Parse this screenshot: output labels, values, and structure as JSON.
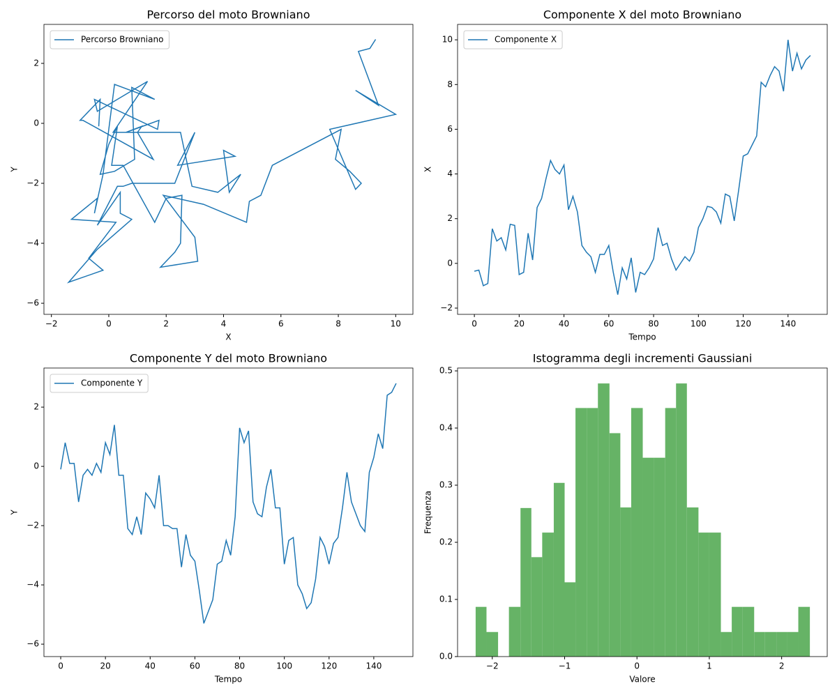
{
  "chart_data": [
    {
      "type": "line",
      "title": "Percorso del moto Browniano",
      "xlabel": "X",
      "ylabel": "Y",
      "x": [
        -0.35,
        -0.3,
        -1.0,
        -0.9,
        1.55,
        1.0,
        1.15,
        0.6,
        1.75,
        1.7,
        -0.5,
        -0.4,
        1.35,
        0.15,
        2.5,
        2.9,
        3.8,
        4.6,
        4.2,
        4.0,
        4.4,
        2.4,
        3.0,
        2.3,
        0.8,
        0.5,
        0.3,
        -0.4,
        0.4,
        0.4,
        0.8,
        -0.4,
        -1.4,
        -0.2,
        -0.7,
        0.25,
        -1.3,
        -0.4,
        -0.5,
        -0.2,
        0.2,
        1.6,
        0.8,
        0.9,
        0.2,
        -0.3,
        0.0,
        0.3,
        0.1,
        0.5,
        1.6,
        2.0,
        2.55,
        2.5,
        2.3,
        1.8,
        3.1,
        3.0,
        1.9,
        3.3,
        4.8,
        4.9,
        5.3,
        5.7,
        8.1,
        7.9,
        8.4,
        8.8,
        8.6,
        7.7,
        10.0,
        8.6,
        9.4,
        8.7,
        9.1,
        9.3
      ],
      "series": [
        {
          "name": "Percorso Browniano",
          "color": "#1f77b4",
          "values": [
            -0.1,
            0.8,
            0.1,
            0.1,
            -1.2,
            -0.3,
            -0.1,
            -0.3,
            0.1,
            -0.2,
            0.8,
            0.4,
            1.4,
            -0.3,
            -0.3,
            -2.1,
            -2.3,
            -1.7,
            -2.3,
            -0.9,
            -1.1,
            -1.4,
            -0.3,
            -2.0,
            -2.0,
            -2.1,
            -2.1,
            -3.4,
            -2.3,
            -3.0,
            -3.2,
            -4.2,
            -5.3,
            -4.9,
            -4.5,
            -3.3,
            -3.2,
            -2.5,
            -3.0,
            -1.7,
            1.3,
            0.8,
            1.2,
            -1.2,
            -1.6,
            -1.7,
            -0.7,
            -0.1,
            -1.4,
            -1.4,
            -3.3,
            -2.5,
            -2.4,
            -4.0,
            -4.3,
            -4.8,
            -4.6,
            -3.8,
            -2.4,
            -2.7,
            -3.3,
            -2.6,
            -2.4,
            -1.4,
            -0.2,
            -1.2,
            -1.6,
            -2.0,
            -2.2,
            -0.2,
            0.3,
            1.1,
            0.6,
            2.4,
            2.5,
            2.8
          ]
        }
      ],
      "xlim": [
        -2.26,
        10.6
      ],
      "ylim": [
        -6.37,
        3.3
      ],
      "xticks": [
        {
          "value": -2,
          "label": "−2"
        },
        0,
        2,
        4,
        6,
        8,
        10
      ],
      "yticks": [
        {
          "value": -6,
          "label": "−6"
        },
        {
          "value": -4,
          "label": "−4"
        },
        {
          "value": -2,
          "label": "−2"
        },
        0,
        2
      ],
      "legend": "upper left"
    },
    {
      "type": "line",
      "title": "Componente X del moto Browniano",
      "xlabel": "Tempo",
      "ylabel": "X",
      "x": [
        0,
        2,
        4,
        6,
        8,
        10,
        12,
        14,
        16,
        18,
        20,
        22,
        24,
        26,
        28,
        30,
        32,
        34,
        36,
        38,
        40,
        42,
        44,
        46,
        48,
        50,
        52,
        54,
        56,
        58,
        60,
        62,
        64,
        66,
        68,
        70,
        72,
        74,
        76,
        78,
        80,
        82,
        84,
        86,
        88,
        90,
        92,
        94,
        96,
        98,
        100,
        102,
        104,
        106,
        108,
        110,
        112,
        114,
        116,
        118,
        120,
        122,
        124,
        126,
        128,
        130,
        132,
        134,
        136,
        138,
        140,
        142,
        144,
        146,
        148,
        150
      ],
      "series": [
        {
          "name": "Componente X",
          "color": "#1f77b4",
          "values": [
            -0.35,
            -0.3,
            -1.0,
            -0.9,
            1.55,
            1.0,
            1.15,
            0.6,
            1.75,
            1.7,
            -0.5,
            -0.4,
            1.35,
            0.15,
            2.5,
            2.9,
            3.8,
            4.6,
            4.2,
            4.0,
            4.4,
            2.4,
            3.0,
            2.3,
            0.8,
            0.5,
            0.3,
            -0.4,
            0.4,
            0.4,
            0.8,
            -0.4,
            -1.4,
            -0.2,
            -0.7,
            0.25,
            -1.3,
            -0.4,
            -0.5,
            -0.2,
            0.2,
            1.6,
            0.8,
            0.9,
            0.2,
            -0.3,
            0.0,
            0.3,
            0.1,
            0.5,
            1.6,
            2.0,
            2.55,
            2.5,
            2.3,
            1.8,
            3.1,
            3.0,
            1.9,
            3.3,
            4.8,
            4.9,
            5.3,
            5.7,
            8.1,
            7.9,
            8.4,
            8.8,
            8.6,
            7.7,
            10.0,
            8.6,
            9.4,
            8.7,
            9.1,
            9.3
          ]
        }
      ],
      "xlim": [
        -7.5,
        157.5
      ],
      "ylim": [
        -2.28,
        10.69
      ],
      "xticks": [
        0,
        20,
        40,
        60,
        80,
        100,
        120,
        140
      ],
      "yticks": [
        {
          "value": -2,
          "label": "−2"
        },
        0,
        2,
        4,
        6,
        8,
        10
      ],
      "legend": "upper left"
    },
    {
      "type": "line",
      "title": "Componente Y del moto Browniano",
      "xlabel": "Tempo",
      "ylabel": "Y",
      "x": [
        0,
        2,
        4,
        6,
        8,
        10,
        12,
        14,
        16,
        18,
        20,
        22,
        24,
        26,
        28,
        30,
        32,
        34,
        36,
        38,
        40,
        42,
        44,
        46,
        48,
        50,
        52,
        54,
        56,
        58,
        60,
        62,
        64,
        66,
        68,
        70,
        72,
        74,
        76,
        78,
        80,
        82,
        84,
        86,
        88,
        90,
        92,
        94,
        96,
        98,
        100,
        102,
        104,
        106,
        108,
        110,
        112,
        114,
        116,
        118,
        120,
        122,
        124,
        126,
        128,
        130,
        132,
        134,
        136,
        138,
        140,
        142,
        144,
        146,
        148,
        150
      ],
      "series": [
        {
          "name": "Componente Y",
          "color": "#1f77b4",
          "values": [
            -0.1,
            0.8,
            0.1,
            0.1,
            -1.2,
            -0.3,
            -0.1,
            -0.3,
            0.1,
            -0.2,
            0.8,
            0.4,
            1.4,
            -0.3,
            -0.3,
            -2.1,
            -2.3,
            -1.7,
            -2.3,
            -0.9,
            -1.1,
            -1.4,
            -0.3,
            -2.0,
            -2.0,
            -2.1,
            -2.1,
            -3.4,
            -2.3,
            -3.0,
            -3.2,
            -4.2,
            -5.3,
            -4.9,
            -4.5,
            -3.3,
            -3.2,
            -2.5,
            -3.0,
            -1.7,
            1.3,
            0.8,
            1.2,
            -1.2,
            -1.6,
            -1.7,
            -0.7,
            -0.1,
            -1.4,
            -1.4,
            -3.3,
            -2.5,
            -2.4,
            -4.0,
            -4.3,
            -4.8,
            -4.6,
            -3.8,
            -2.4,
            -2.7,
            -3.3,
            -2.6,
            -2.4,
            -1.4,
            -0.2,
            -1.2,
            -1.6,
            -2.0,
            -2.2,
            -0.2,
            0.3,
            1.1,
            0.6,
            2.4,
            2.5,
            2.8
          ]
        }
      ],
      "xlim": [
        -7.5,
        157.5
      ],
      "ylim": [
        -6.42,
        3.32
      ],
      "xticks": [
        0,
        20,
        40,
        60,
        80,
        100,
        120,
        140
      ],
      "yticks": [
        {
          "value": -6,
          "label": "−6"
        },
        {
          "value": -4,
          "label": "−4"
        },
        {
          "value": -2,
          "label": "−2"
        },
        0,
        2
      ],
      "legend": "upper left"
    },
    {
      "type": "histogram",
      "title": "Istogramma degli incrementi Gaussiani",
      "xlabel": "Valore",
      "ylabel": "Frequenza",
      "bins": [
        -2.23,
        -2.08,
        -1.92,
        -1.77,
        -1.61,
        -1.46,
        -1.31,
        -1.15,
        -1.0,
        -0.85,
        -0.69,
        -0.54,
        -0.38,
        -0.23,
        -0.08,
        0.08,
        0.23,
        0.39,
        0.54,
        0.69,
        0.85,
        1.0,
        1.16,
        1.31,
        1.46,
        1.62,
        1.77,
        1.93,
        2.08,
        2.23,
        2.39
      ],
      "values": [
        0.087,
        0.043,
        0,
        0.087,
        0.26,
        0.174,
        0.217,
        0.304,
        0.13,
        0.435,
        0.435,
        0.478,
        0.391,
        0.261,
        0.435,
        0.348,
        0.348,
        0.435,
        0.478,
        0.261,
        0.217,
        0.217,
        0.043,
        0.087,
        0.087,
        0.043,
        0.043,
        0.043,
        0.043,
        0.087
      ],
      "color": "#66b366",
      "xlim": [
        -2.48,
        2.63
      ],
      "ylim": [
        0,
        0.505
      ],
      "xticks": [
        {
          "value": -2,
          "label": "−2"
        },
        {
          "value": -1,
          "label": "−1"
        },
        0,
        1,
        2
      ],
      "yticks": [
        {
          "value": 0,
          "label": "0.0"
        },
        0.1,
        0.2,
        0.3,
        0.4,
        0.5
      ]
    }
  ]
}
